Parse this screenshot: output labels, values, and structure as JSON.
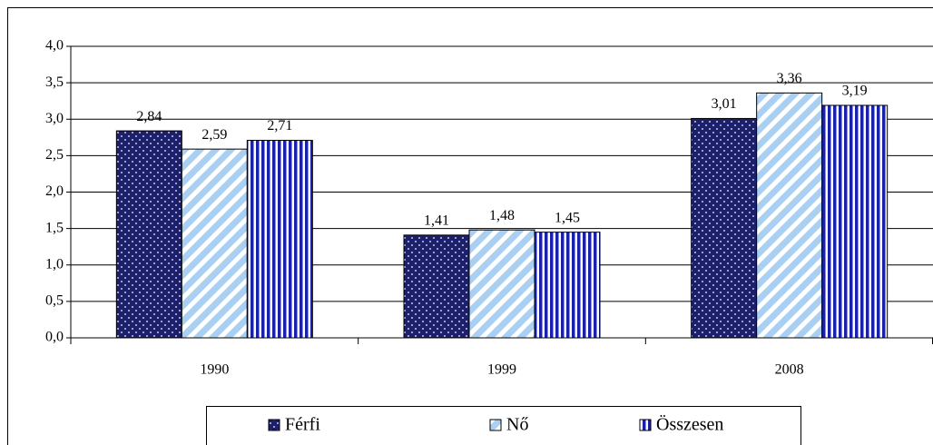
{
  "chart_data": {
    "type": "bar",
    "categories": [
      "1990",
      "1999",
      "2008"
    ],
    "series": [
      {
        "name": "Férfi",
        "color": "#1c1f6b",
        "values": [
          2.84,
          1.41,
          3.01
        ],
        "value_labels": [
          "2,84",
          "1,41",
          "3,01"
        ]
      },
      {
        "name": "Nő",
        "color": "#a9d0f2",
        "values": [
          2.59,
          1.48,
          3.36
        ],
        "value_labels": [
          "2,59",
          "1,48",
          "3,36"
        ]
      },
      {
        "name": "Összesen",
        "color": "#1a22a8",
        "values": [
          2.71,
          1.45,
          3.19
        ],
        "value_labels": [
          "2,71",
          "1,45",
          "3,19"
        ]
      }
    ],
    "ylim": [
      0,
      4
    ],
    "yticks": [
      {
        "value": 0,
        "label": "0,0"
      },
      {
        "value": 0.5,
        "label": "0,5"
      },
      {
        "value": 1,
        "label": "1,0"
      },
      {
        "value": 1.5,
        "label": "1,5"
      },
      {
        "value": 2,
        "label": "2,0"
      },
      {
        "value": 2.5,
        "label": "2,5"
      },
      {
        "value": 3,
        "label": "3,0"
      },
      {
        "value": 3.5,
        "label": "3,5"
      },
      {
        "value": 4,
        "label": "4,0"
      }
    ],
    "grid": true,
    "legend": "bottom"
  }
}
